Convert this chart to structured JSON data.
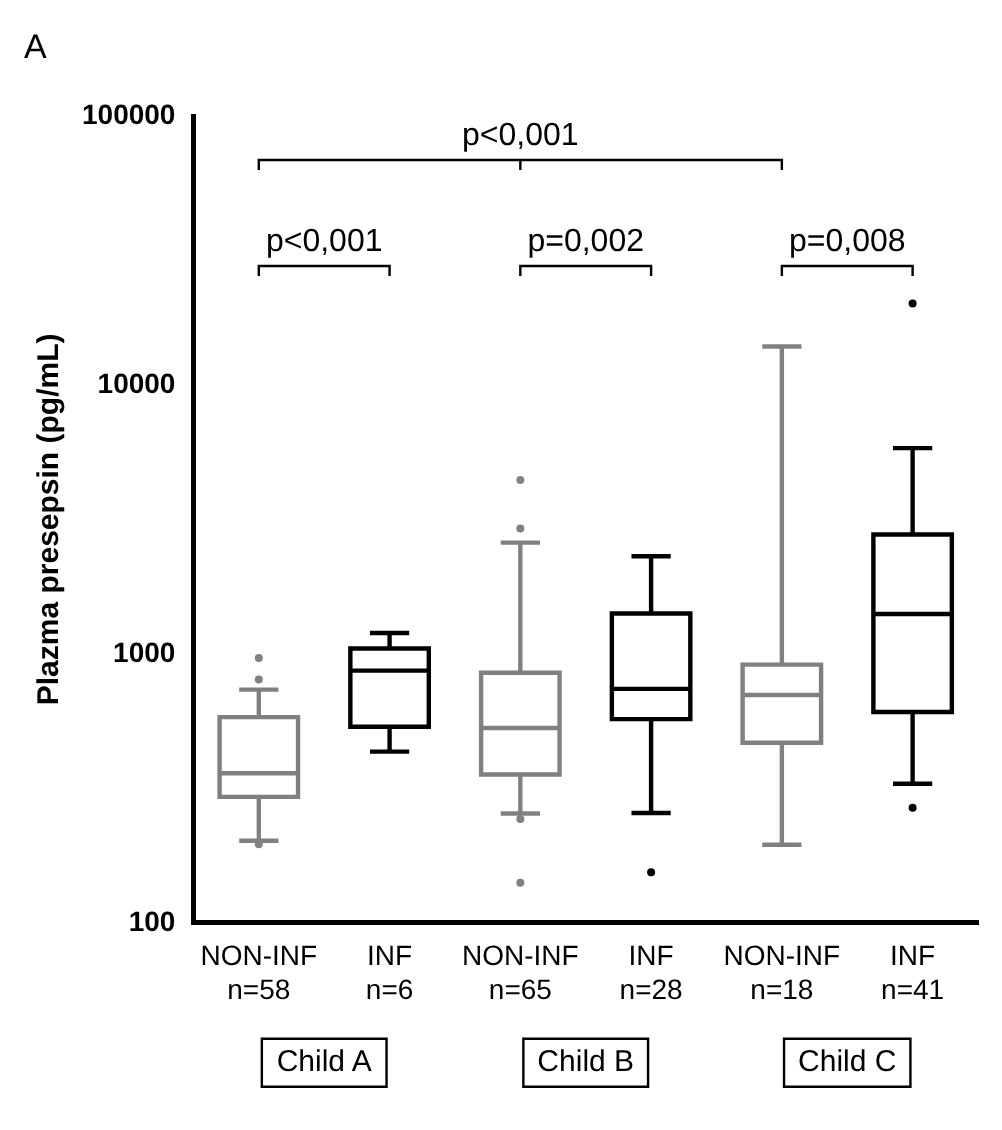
{
  "chart_data": {
    "type": "box",
    "ylabel": "Plazma presepsin (pg/mL)",
    "categories": [
      "NON-INF\nn=58",
      "INF\nn=6",
      "NON-INF\nn=65",
      "INF\nn=28",
      "NON-INF\nn=18",
      "INF\nn=41"
    ],
    "colors": [
      "#808080",
      "#000000",
      "#808080",
      "#000000",
      "#808080",
      "#000000"
    ],
    "boxes": [
      {
        "low": 202,
        "q1": 294,
        "median": 360,
        "q3": 582,
        "high": 736,
        "outliers": [
          966,
          803,
          196
        ]
      },
      {
        "low": 433,
        "q1": 536,
        "median": 866,
        "q3": 1047,
        "high": 1196
      },
      {
        "low": 255,
        "q1": 356,
        "median": 530,
        "q3": 851,
        "high": 2593,
        "outliers": [
          4434,
          2925,
          243,
          141
        ]
      },
      {
        "low": 256,
        "q1": 572,
        "median": 741,
        "q3": 1413,
        "high": 2307,
        "outliers": [
          154
        ]
      },
      {
        "low": 195,
        "q1": 467,
        "median": 703,
        "q3": 912,
        "high": 13900
      },
      {
        "low": 329,
        "q1": 608,
        "median": 1406,
        "q3": 2778,
        "high": 5821,
        "outliers": [
          20100,
          268
        ]
      }
    ],
    "log": true,
    "ylim": [
      100,
      100000
    ],
    "yticks": [
      100,
      1000,
      10000,
      100000
    ],
    "grid": false,
    "legend": false,
    "annotations": [
      "A",
      "p<0,001",
      "p<0,001",
      "p=0,002",
      "p=0,008",
      "Child A",
      "Child B",
      "Child C"
    ]
  }
}
